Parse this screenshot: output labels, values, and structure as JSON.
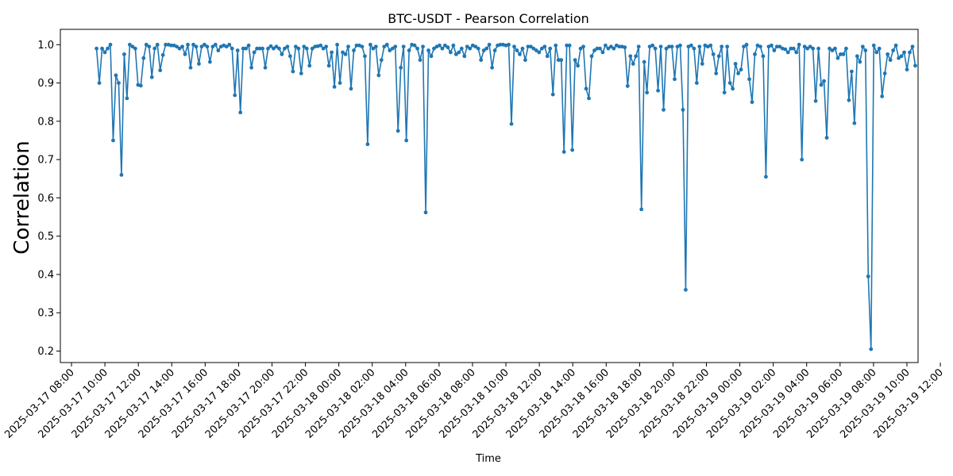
{
  "chart_data": {
    "type": "line",
    "title": "BTC-USDT - Pearson Correlation",
    "xlabel": "Time",
    "ylabel": "Correlation",
    "x_start": "2025-03-17 09:30",
    "x_end": "2025-03-19 10:30",
    "xlim": [
      "2025-03-17 07:20",
      "2025-03-19 10:40"
    ],
    "ylim": [
      0.17,
      1.04
    ],
    "x_ticks": [
      "2025-03-17 08:00",
      "2025-03-17 10:00",
      "2025-03-17 12:00",
      "2025-03-17 14:00",
      "2025-03-17 16:00",
      "2025-03-17 18:00",
      "2025-03-17 20:00",
      "2025-03-17 22:00",
      "2025-03-18 00:00",
      "2025-03-18 02:00",
      "2025-03-18 04:00",
      "2025-03-18 06:00",
      "2025-03-18 08:00",
      "2025-03-18 10:00",
      "2025-03-18 12:00",
      "2025-03-18 14:00",
      "2025-03-18 16:00",
      "2025-03-18 18:00",
      "2025-03-18 20:00",
      "2025-03-18 22:00",
      "2025-03-19 00:00",
      "2025-03-19 02:00",
      "2025-03-19 04:00",
      "2025-03-19 06:00",
      "2025-03-19 08:00",
      "2025-03-19 10:00",
      "2025-03-19 12:00"
    ],
    "y_ticks": [
      "0.2",
      "0.3",
      "0.4",
      "0.5",
      "0.6",
      "0.7",
      "0.8",
      "0.9",
      "1.0"
    ],
    "color": "#1f77b4",
    "grid": false,
    "series": [
      {
        "values": [
          0.99,
          0.9,
          0.99,
          0.98,
          0.99,
          1.0,
          0.75,
          0.92,
          0.9,
          0.66,
          0.975,
          0.86,
          1.0,
          0.995,
          0.99,
          0.895,
          0.893,
          0.965,
          1.0,
          0.995,
          0.915,
          0.99,
          1.0,
          0.933,
          0.973,
          1.0,
          1.0,
          0.998,
          0.998,
          0.995,
          0.99,
          0.995,
          0.975,
          1.0,
          0.94,
          1.0,
          0.995,
          0.95,
          0.995,
          1.0,
          0.995,
          0.955,
          0.995,
          1.0,
          0.985,
          0.995,
          0.998,
          0.995,
          1.0,
          0.99,
          0.868,
          0.985,
          0.823,
          0.99,
          0.99,
          0.998,
          0.94,
          0.98,
          0.99,
          0.99,
          0.99,
          0.94,
          0.99,
          0.996,
          0.99,
          0.995,
          0.99,
          0.975,
          0.99,
          0.995,
          0.97,
          0.93,
          0.995,
          0.99,
          0.925,
          0.995,
          0.99,
          0.945,
          0.99,
          0.995,
          0.996,
          0.998,
          0.99,
          0.995,
          0.945,
          0.98,
          0.89,
          1.0,
          0.9,
          0.98,
          0.975,
          0.995,
          0.885,
          0.985,
          0.998,
          0.998,
          0.995,
          0.97,
          0.74,
          1.0,
          0.99,
          0.995,
          0.92,
          0.96,
          0.995,
          1.0,
          0.985,
          0.99,
          0.995,
          0.775,
          0.94,
          0.995,
          0.75,
          0.985,
          1.0,
          0.998,
          0.99,
          0.96,
          0.995,
          0.562,
          0.985,
          0.97,
          0.99,
          0.995,
          0.998,
          0.99,
          0.998,
          0.993,
          0.98,
          0.998,
          0.975,
          0.98,
          0.99,
          0.97,
          0.995,
          0.99,
          0.998,
          0.995,
          0.99,
          0.96,
          0.985,
          0.99,
          1.0,
          0.94,
          0.985,
          0.998,
          1.0,
          1.0,
          0.998,
          1.0,
          0.793,
          0.995,
          0.985,
          0.975,
          0.99,
          0.96,
          0.995,
          0.995,
          0.99,
          0.985,
          0.98,
          0.99,
          0.995,
          0.97,
          0.99,
          0.87,
          0.998,
          0.96,
          0.96,
          0.72,
          0.998,
          0.998,
          0.725,
          0.96,
          0.945,
          0.99,
          0.995,
          0.885,
          0.86,
          0.97,
          0.985,
          0.99,
          0.99,
          0.98,
          0.998,
          0.99,
          0.995,
          0.99,
          0.998,
          0.995,
          0.995,
          0.993,
          0.892,
          0.97,
          0.95,
          0.97,
          0.995,
          0.57,
          0.955,
          0.875,
          0.995,
          0.998,
          0.99,
          0.88,
          0.995,
          0.83,
          0.99,
          0.995,
          0.995,
          0.91,
          0.995,
          0.998,
          0.83,
          0.36,
          0.995,
          0.998,
          0.99,
          0.9,
          0.995,
          0.95,
          0.998,
          0.995,
          0.998,
          0.975,
          0.925,
          0.97,
          0.995,
          0.875,
          0.995,
          0.9,
          0.885,
          0.95,
          0.925,
          0.935,
          0.995,
          1.0,
          0.91,
          0.85,
          0.975,
          0.998,
          0.995,
          0.97,
          0.655,
          0.995,
          0.998,
          0.985,
          0.995,
          0.995,
          0.99,
          0.988,
          0.98,
          0.99,
          0.99,
          0.98,
          1.0,
          0.7,
          0.995,
          0.99,
          0.995,
          0.99,
          0.853,
          0.99,
          0.895,
          0.905,
          0.757,
          0.99,
          0.985,
          0.99,
          0.965,
          0.975,
          0.975,
          0.99,
          0.855,
          0.93,
          0.795,
          0.97,
          0.955,
          0.995,
          0.985,
          0.395,
          0.205,
          0.998,
          0.98,
          0.99,
          0.865,
          0.925,
          0.975,
          0.96,
          0.985,
          0.998,
          0.965,
          0.97,
          0.98,
          0.935,
          0.98,
          0.995,
          0.945
        ]
      }
    ]
  }
}
